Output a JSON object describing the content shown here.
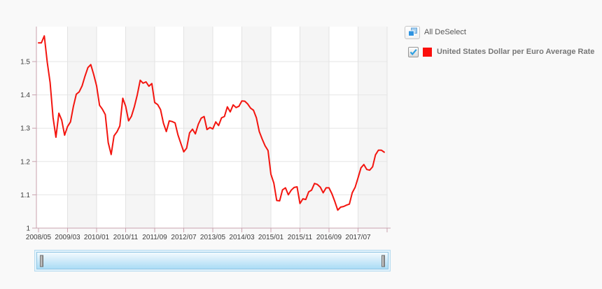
{
  "legend": {
    "deselect": {
      "label": "All DeSelect"
    },
    "series": [
      {
        "label": "United States Dollar per Euro Average Rate",
        "checked": true,
        "swatch_color": "#fb0f0c"
      }
    ]
  },
  "chart_data": {
    "type": "line",
    "title": "United States Dollar per Euro Average Rate",
    "xlabel": "",
    "ylabel": "",
    "ylim": [
      1.0,
      1.6
    ],
    "grid": {
      "h_gridlines": [
        1.1,
        1.2,
        1.3,
        1.4,
        1.5
      ],
      "alt_band": true,
      "x_tick_interval_months": 10
    },
    "x_tick_labels": [
      "2008/05",
      "2009/03",
      "2010/01",
      "2010/11",
      "2011/09",
      "2012/07",
      "2013/05",
      "2014/03",
      "2015/01",
      "2015/11",
      "2016/09",
      "2017/07"
    ],
    "y_tick_labels": [
      "1",
      "1.1",
      "1.2",
      "1.3",
      "1.4",
      "1.5"
    ],
    "x": [
      "2008/05",
      "2008/06",
      "2008/07",
      "2008/08",
      "2008/09",
      "2008/10",
      "2008/11",
      "2008/12",
      "2009/01",
      "2009/02",
      "2009/03",
      "2009/04",
      "2009/05",
      "2009/06",
      "2009/07",
      "2009/08",
      "2009/09",
      "2009/10",
      "2009/11",
      "2009/12",
      "2010/01",
      "2010/02",
      "2010/03",
      "2010/04",
      "2010/05",
      "2010/06",
      "2010/07",
      "2010/08",
      "2010/09",
      "2010/10",
      "2010/11",
      "2010/12",
      "2011/01",
      "2011/02",
      "2011/03",
      "2011/04",
      "2011/05",
      "2011/06",
      "2011/07",
      "2011/08",
      "2011/09",
      "2011/10",
      "2011/11",
      "2011/12",
      "2012/01",
      "2012/02",
      "2012/03",
      "2012/04",
      "2012/05",
      "2012/06",
      "2012/07",
      "2012/08",
      "2012/09",
      "2012/10",
      "2012/11",
      "2012/12",
      "2013/01",
      "2013/02",
      "2013/03",
      "2013/04",
      "2013/05",
      "2013/06",
      "2013/07",
      "2013/08",
      "2013/09",
      "2013/10",
      "2013/11",
      "2013/12",
      "2014/01",
      "2014/02",
      "2014/03",
      "2014/04",
      "2014/05",
      "2014/06",
      "2014/07",
      "2014/08",
      "2014/09",
      "2014/10",
      "2014/11",
      "2014/12",
      "2015/01",
      "2015/02",
      "2015/03",
      "2015/04",
      "2015/05",
      "2015/06",
      "2015/07",
      "2015/08",
      "2015/09",
      "2015/10",
      "2015/11",
      "2015/12",
      "2016/01",
      "2016/02",
      "2016/03",
      "2016/04",
      "2016/05",
      "2016/06",
      "2016/07",
      "2016/08",
      "2016/09",
      "2016/10",
      "2016/11",
      "2016/12",
      "2017/01",
      "2017/02",
      "2017/03",
      "2017/04",
      "2017/05",
      "2017/06",
      "2017/07",
      "2017/08",
      "2017/09",
      "2017/10",
      "2017/11",
      "2017/12",
      "2018/01",
      "2018/02",
      "2018/03",
      "2018/04"
    ],
    "series": [
      {
        "name": "United States Dollar per Euro Average Rate",
        "color": "#f3150f",
        "values": [
          1.556,
          1.556,
          1.577,
          1.498,
          1.437,
          1.332,
          1.273,
          1.345,
          1.324,
          1.279,
          1.305,
          1.319,
          1.365,
          1.402,
          1.409,
          1.427,
          1.456,
          1.482,
          1.491,
          1.461,
          1.427,
          1.369,
          1.357,
          1.341,
          1.257,
          1.221,
          1.277,
          1.289,
          1.307,
          1.39,
          1.366,
          1.322,
          1.336,
          1.365,
          1.4,
          1.444,
          1.435,
          1.439,
          1.426,
          1.434,
          1.377,
          1.371,
          1.356,
          1.315,
          1.29,
          1.322,
          1.32,
          1.316,
          1.28,
          1.254,
          1.229,
          1.24,
          1.286,
          1.297,
          1.283,
          1.312,
          1.33,
          1.335,
          1.296,
          1.302,
          1.298,
          1.319,
          1.308,
          1.331,
          1.335,
          1.364,
          1.349,
          1.37,
          1.362,
          1.366,
          1.382,
          1.381,
          1.373,
          1.36,
          1.354,
          1.331,
          1.29,
          1.267,
          1.247,
          1.233,
          1.162,
          1.135,
          1.083,
          1.082,
          1.115,
          1.121,
          1.1,
          1.114,
          1.122,
          1.124,
          1.074,
          1.088,
          1.086,
          1.109,
          1.114,
          1.134,
          1.131,
          1.123,
          1.106,
          1.121,
          1.121,
          1.103,
          1.08,
          1.054,
          1.063,
          1.065,
          1.069,
          1.072,
          1.106,
          1.123,
          1.151,
          1.181,
          1.191,
          1.176,
          1.174,
          1.184,
          1.22,
          1.234,
          1.234,
          1.228
        ]
      }
    ],
    "legend_position": "right",
    "colors": {
      "axis": "#c9a2ae",
      "h_grid": "#e6e6e6",
      "v_grid": "#e3e3e3",
      "band": "#f5f5f5",
      "plot_bg": "#ffffff",
      "tick_text": "#3c3c3c"
    }
  },
  "scrollbar": {
    "kind": "horizontal-range-selector",
    "grips": [
      "left",
      "right"
    ]
  }
}
